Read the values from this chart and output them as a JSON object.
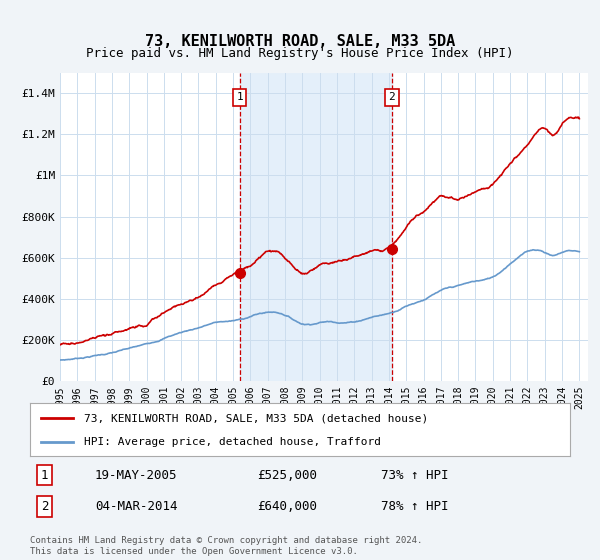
{
  "title": "73, KENILWORTH ROAD, SALE, M33 5DA",
  "subtitle": "Price paid vs. HM Land Registry's House Price Index (HPI)",
  "x_start_year": 1995,
  "x_end_year": 2025,
  "ylim": [
    0,
    1500000
  ],
  "yticks": [
    0,
    200000,
    400000,
    600000,
    800000,
    1000000,
    1200000,
    1400000
  ],
  "ytick_labels": [
    "£0",
    "£200K",
    "£400K",
    "£600K",
    "£800K",
    "£1M",
    "£1.2M",
    "£1.4M"
  ],
  "red_line_color": "#cc0000",
  "blue_line_color": "#6699cc",
  "highlight_fill_color": "#ddeeff",
  "vline_color": "#cc0000",
  "transaction1": {
    "date": 2005.38,
    "price": 525000,
    "label": "1",
    "date_str": "19-MAY-2005",
    "price_str": "£525,000",
    "hpi_str": "73% ↑ HPI"
  },
  "transaction2": {
    "date": 2014.17,
    "price": 640000,
    "label": "2",
    "date_str": "04-MAR-2014",
    "price_str": "£640,000",
    "hpi_str": "78% ↑ HPI"
  },
  "legend_line1": "73, KENILWORTH ROAD, SALE, M33 5DA (detached house)",
  "legend_line2": "HPI: Average price, detached house, Trafford",
  "footer": "Contains HM Land Registry data © Crown copyright and database right 2024.\nThis data is licensed under the Open Government Licence v3.0.",
  "background_color": "#f0f4f8",
  "plot_background": "#ffffff",
  "grid_color": "#ccddee"
}
